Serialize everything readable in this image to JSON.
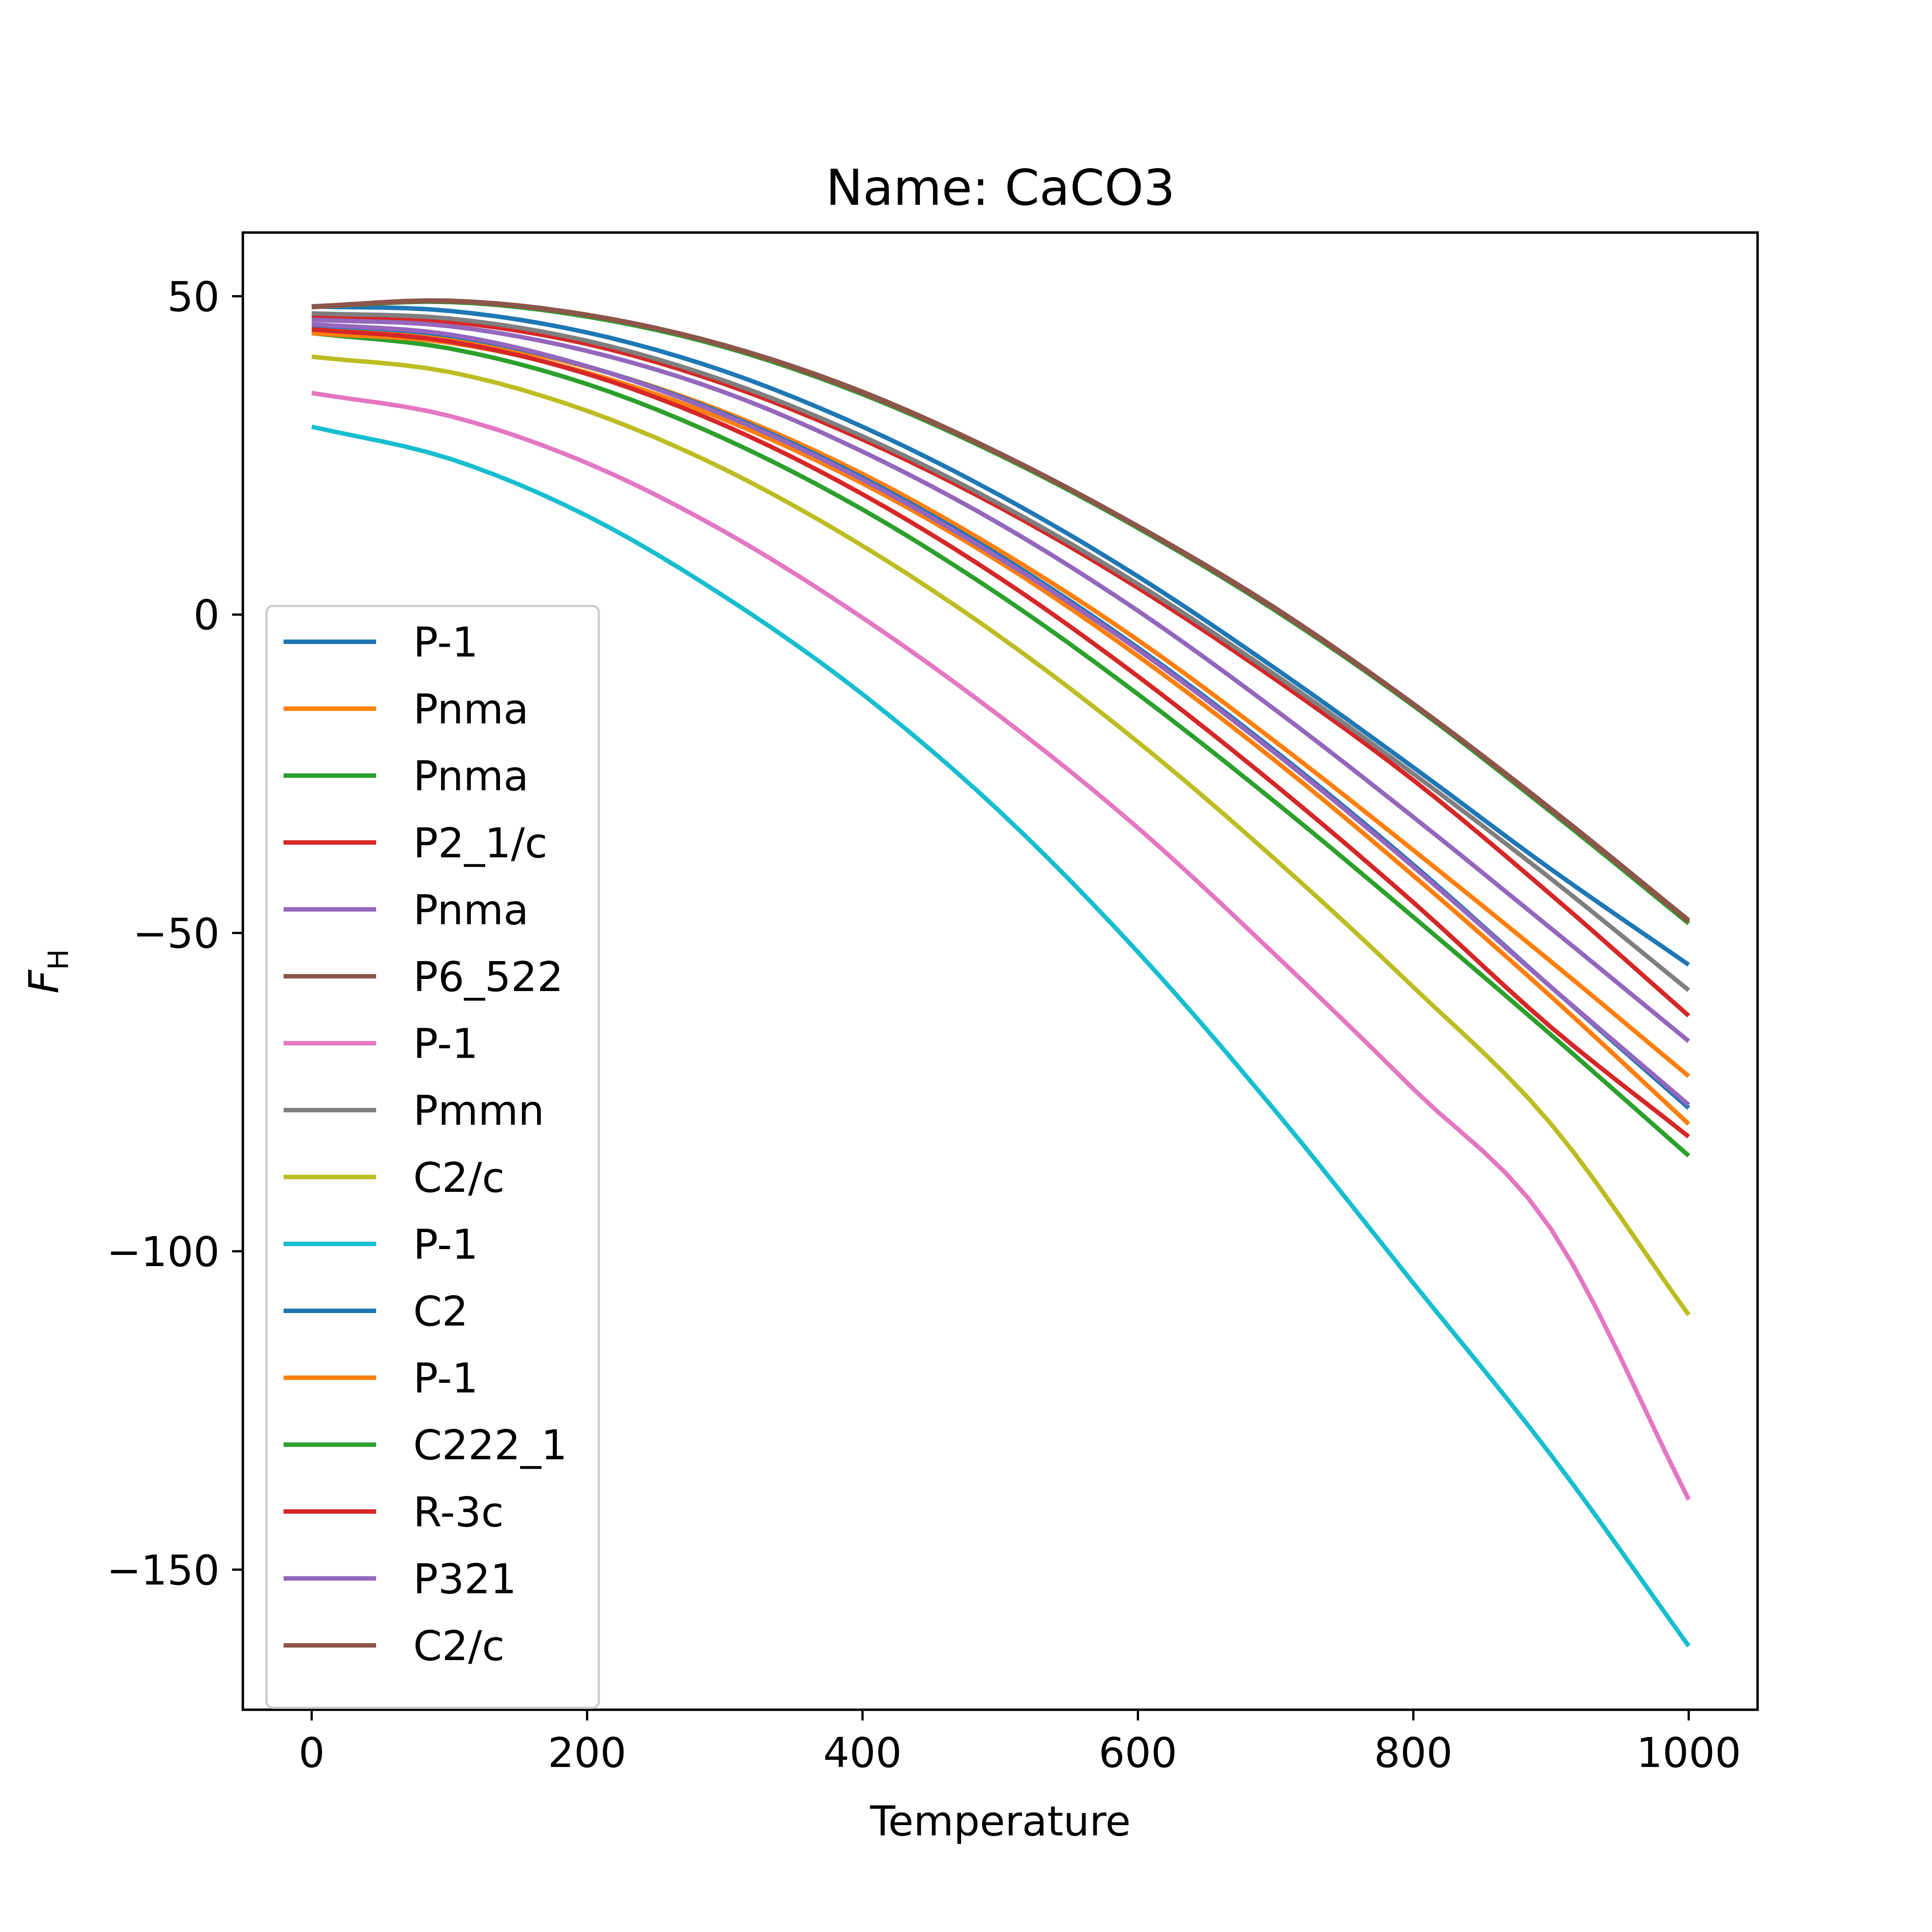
{
  "chart_data": {
    "type": "line",
    "title": "Name: CaCO3",
    "xlabel": "Temperature",
    "ylabel_main": "F",
    "ylabel_sub": "H",
    "xlim": [
      -50,
      1050
    ],
    "ylim": [
      -172,
      60
    ],
    "xticks": [
      0,
      200,
      400,
      600,
      800,
      1000
    ],
    "yticks": [
      50,
      0,
      -50,
      -100,
      -150
    ],
    "xtick_labels": [
      "0",
      "200",
      "400",
      "600",
      "800",
      "1000"
    ],
    "ytick_labels": [
      "50",
      "0",
      "−50",
      "−100",
      "−150"
    ],
    "grid": false,
    "legend_position": "lower-left",
    "x": [
      0,
      100,
      200,
      300,
      400,
      500,
      600,
      700,
      800,
      900,
      1000
    ],
    "series": [
      {
        "name": "P-1",
        "color": "#1f77b4",
        "values": [
          48.4,
          47.7,
          44.3,
          38.2,
          29.5,
          18.7,
          6.0,
          -8.5,
          -24.0,
          -40.0,
          -55.0
        ]
      },
      {
        "name": "Pnma",
        "color": "#ff7f0e",
        "values": [
          44.8,
          43.2,
          38.9,
          31.8,
          22.1,
          10.0,
          -4.0,
          -20.0,
          -37.0,
          -54.5,
          -72.5
        ]
      },
      {
        "name": "Pnma",
        "color": "#2ca02c",
        "values": [
          44.2,
          41.8,
          36.2,
          27.6,
          16.5,
          3.0,
          -12.5,
          -29.5,
          -47.5,
          -66.0,
          -85.0
        ]
      },
      {
        "name": "P2_1/c",
        "color": "#d62728",
        "values": [
          47.0,
          46.0,
          42.5,
          36.2,
          27.5,
          16.8,
          4.2,
          -10.2,
          -26.0,
          -44.0,
          -63.0
        ]
      },
      {
        "name": "Pnma",
        "color": "#9467bd",
        "values": [
          46.3,
          45.3,
          41.4,
          34.9,
          25.6,
          14.2,
          0.6,
          -15.0,
          -31.8,
          -49.3,
          -67.0
        ]
      },
      {
        "name": "P6_522",
        "color": "#8c564b",
        "values": [
          48.4,
          49.3,
          47.1,
          42.3,
          35.0,
          25.3,
          13.9,
          1.0,
          -14.0,
          -30.5,
          -48.0
        ]
      },
      {
        "name": "P-1",
        "color": "#e377c2",
        "values": [
          34.8,
          31.2,
          23.8,
          13.0,
          -0.5,
          -16.0,
          -33.5,
          -53.5,
          -74.5,
          -96.5,
          -139.0
        ]
      },
      {
        "name": "Pmmn",
        "color": "#7f7f7f",
        "values": [
          47.3,
          46.5,
          43.0,
          36.7,
          28.0,
          17.3,
          4.8,
          -9.5,
          -25.0,
          -41.5,
          -59.0
        ]
      },
      {
        "name": "C2/c",
        "color": "#bcbd22",
        "values": [
          40.5,
          38.1,
          32.0,
          22.8,
          10.8,
          -3.5,
          -20.0,
          -38.5,
          -58.5,
          -80.0,
          -110.0
        ]
      },
      {
        "name": "P-1",
        "color": "#17becf",
        "values": [
          29.5,
          24.5,
          15.5,
          2.8,
          -12.5,
          -31.0,
          -53.0,
          -78.0,
          -105.0,
          -132.0,
          -162.0
        ]
      },
      {
        "name": "C2",
        "color": "#1f77b4",
        "values": [
          45.5,
          43.8,
          39.0,
          31.5,
          21.5,
          9.2,
          -5.2,
          -21.5,
          -39.3,
          -58.5,
          -77.5
        ]
      },
      {
        "name": "P-1",
        "color": "#ff7f0e",
        "values": [
          44.2,
          42.7,
          38.0,
          30.6,
          20.6,
          8.2,
          -6.5,
          -23.0,
          -41.0,
          -60.0,
          -80.0
        ]
      },
      {
        "name": "C222_1",
        "color": "#2ca02c",
        "values": [
          48.3,
          49.1,
          46.8,
          42.0,
          34.6,
          25.0,
          13.6,
          0.6,
          -14.3,
          -31.0,
          -48.5
        ]
      },
      {
        "name": "R-3c",
        "color": "#d62728",
        "values": [
          44.8,
          42.9,
          37.8,
          29.7,
          18.9,
          5.7,
          -9.7,
          -26.8,
          -45.2,
          -64.8,
          -82.0
        ]
      },
      {
        "name": "P321",
        "color": "#9467bd",
        "values": [
          45.6,
          44.0,
          39.0,
          31.3,
          21.2,
          8.8,
          -5.5,
          -21.8,
          -39.6,
          -58.5,
          -77.0
        ]
      },
      {
        "name": "C2/c",
        "color": "#8c564b",
        "values": [
          48.3,
          49.2,
          47.0,
          42.2,
          34.8,
          25.2,
          13.8,
          0.8,
          -14.1,
          -30.7,
          -48.2
        ]
      }
    ]
  }
}
